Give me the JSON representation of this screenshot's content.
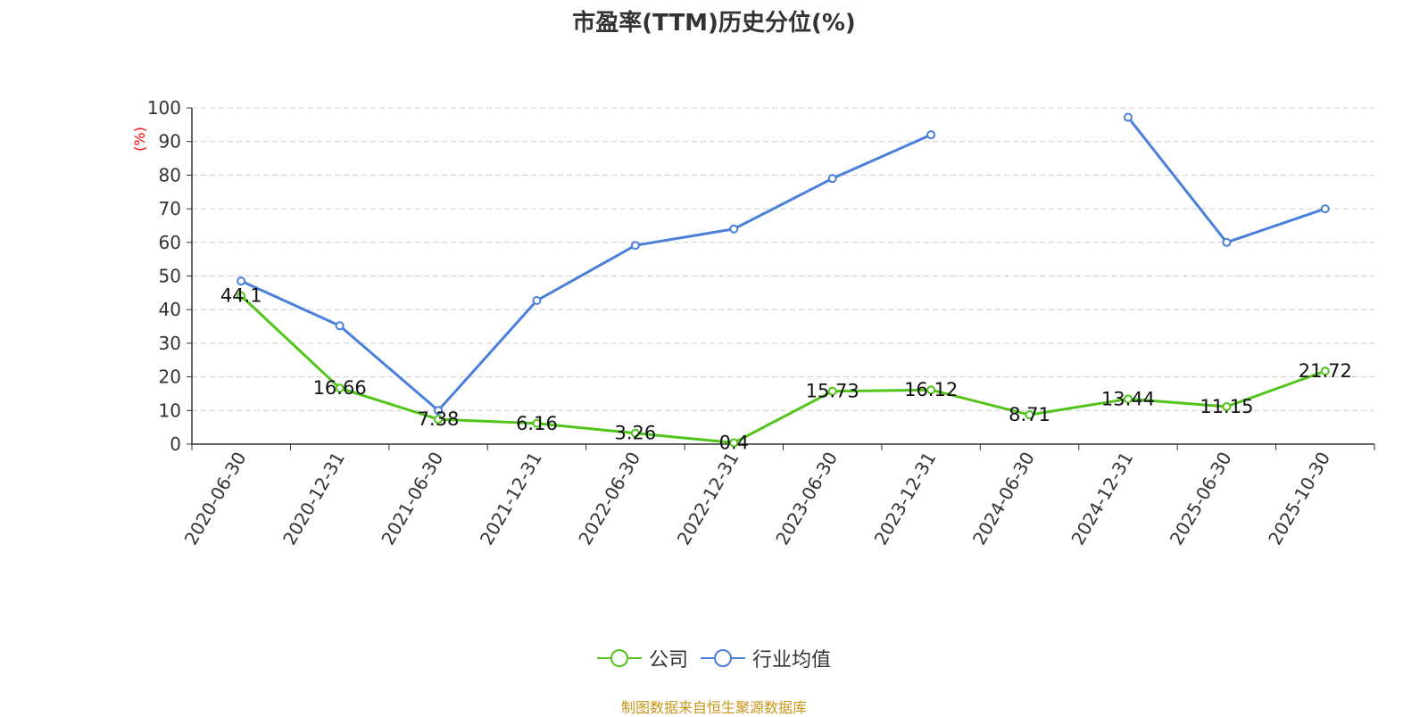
{
  "chart_data": {
    "type": "line",
    "title": "市盈率(TTM)历史分位(%)",
    "ylabel": "(%)",
    "ylim": [
      0,
      100
    ],
    "yticks": [
      0,
      10,
      20,
      30,
      40,
      50,
      60,
      70,
      80,
      90,
      100
    ],
    "grid": true,
    "legend_position": "bottom",
    "categories": [
      "2020-06-30",
      "2020-12-31",
      "2021-06-30",
      "2021-12-31",
      "2022-06-30",
      "2022-12-31",
      "2023-06-30",
      "2023-12-31",
      "2024-06-30",
      "2024-12-31",
      "2025-06-30",
      "2025-10-30"
    ],
    "series": [
      {
        "name": "公司",
        "color": "#52c41a",
        "labels": true,
        "values": [
          44.1,
          16.66,
          7.38,
          6.16,
          3.26,
          0.4,
          15.73,
          16.12,
          8.71,
          13.44,
          11.15,
          21.72
        ]
      },
      {
        "name": "行业均值",
        "color": "#4a7fdb",
        "labels": false,
        "values": [
          48.5,
          35.2,
          10.0,
          42.7,
          59.1,
          64.0,
          79.0,
          92.0,
          null,
          97.2,
          60.0,
          70.0
        ]
      }
    ]
  },
  "source": {
    "text": "制图数据来自恒生聚源数据库",
    "color": "#c8941a"
  },
  "colors": {
    "axis": "#333333",
    "grid": "#cccccc",
    "ylabel": "#ff0000"
  }
}
